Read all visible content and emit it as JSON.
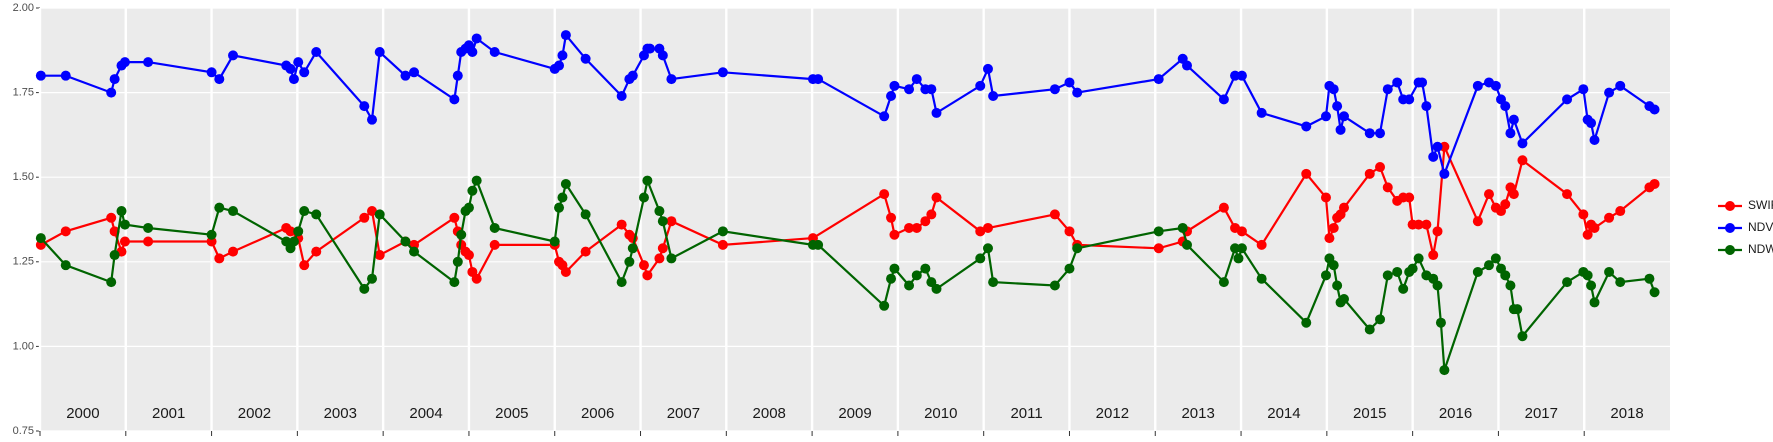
{
  "chart_data": {
    "type": "line",
    "legend": "right",
    "grid": true,
    "background": "#ebebeb",
    "xlim": [
      2000,
      2019
    ],
    "xticks": [
      2000,
      2001,
      2002,
      2003,
      2004,
      2005,
      2006,
      2007,
      2008,
      2009,
      2010,
      2011,
      2012,
      2013,
      2014,
      2015,
      2016,
      2017,
      2018
    ],
    "ylim": [
      0.75,
      2.0
    ],
    "yticks": [
      {
        "value": 0.75,
        "label": "0.75"
      },
      {
        "value": 1,
        "label": "1.00"
      },
      {
        "value": 1.25,
        "label": "1.25"
      },
      {
        "value": 1.5,
        "label": "1.50"
      },
      {
        "value": 1.75,
        "label": "1.75"
      },
      {
        "value": 2,
        "label": "2.00"
      }
    ],
    "series": [
      {
        "name": "SWIR",
        "color": "#ff0000",
        "x": [
          2000.01,
          2000.3,
          2000.83,
          2000.87,
          2000.95,
          2000.99,
          2001.26,
          2002.0,
          2002.09,
          2002.25,
          2002.87,
          2002.92,
          2003.01,
          2003.08,
          2003.22,
          2003.78,
          2003.87,
          2003.96,
          2004.26,
          2004.36,
          2004.83,
          2004.87,
          2004.91,
          2004.96,
          2005.0,
          2005.04,
          2005.09,
          2005.3,
          2006.0,
          2006.05,
          2006.09,
          2006.13,
          2006.36,
          2006.78,
          2006.87,
          2006.91,
          2007.04,
          2007.08,
          2007.22,
          2007.26,
          2007.36,
          2007.96,
          2009.01,
          2009.84,
          2009.92,
          2009.96,
          2010.13,
          2010.22,
          2010.32,
          2010.39,
          2010.45,
          2010.96,
          2011.05,
          2011.83,
          2012.0,
          2012.09,
          2013.04,
          2013.32,
          2013.37,
          2013.8,
          2013.93,
          2014.01,
          2014.24,
          2014.76,
          2014.99,
          2015.03,
          2015.08,
          2015.12,
          2015.16,
          2015.2,
          2015.5,
          2015.62,
          2015.71,
          2015.82,
          2015.89,
          2015.96,
          2016.0,
          2016.07,
          2016.16,
          2016.24,
          2016.29,
          2016.37,
          2016.76,
          2016.89,
          2016.97,
          2017.03,
          2017.08,
          2017.14,
          2017.18,
          2017.28,
          2017.8,
          2017.99,
          2018.04,
          2018.08,
          2018.12,
          2018.29,
          2018.42,
          2018.76,
          2018.82
        ],
        "values": [
          1.3,
          1.34,
          1.38,
          1.34,
          1.28,
          1.31,
          1.31,
          1.31,
          1.26,
          1.28,
          1.35,
          1.34,
          1.32,
          1.24,
          1.28,
          1.38,
          1.4,
          1.27,
          1.31,
          1.3,
          1.38,
          1.34,
          1.3,
          1.28,
          1.27,
          1.22,
          1.2,
          1.3,
          1.3,
          1.25,
          1.24,
          1.22,
          1.28,
          1.36,
          1.33,
          1.32,
          1.24,
          1.21,
          1.26,
          1.29,
          1.37,
          1.3,
          1.32,
          1.45,
          1.38,
          1.33,
          1.35,
          1.35,
          1.37,
          1.39,
          1.44,
          1.34,
          1.35,
          1.39,
          1.34,
          1.3,
          1.29,
          1.31,
          1.34,
          1.41,
          1.35,
          1.34,
          1.3,
          1.51,
          1.44,
          1.32,
          1.35,
          1.38,
          1.39,
          1.41,
          1.51,
          1.53,
          1.47,
          1.43,
          1.44,
          1.44,
          1.36,
          1.36,
          1.36,
          1.27,
          1.34,
          1.59,
          1.37,
          1.45,
          1.41,
          1.4,
          1.42,
          1.47,
          1.45,
          1.55,
          1.45,
          1.39,
          1.33,
          1.36,
          1.35,
          1.38,
          1.4,
          1.47,
          1.48
        ]
      },
      {
        "name": "NDVI",
        "color": "#0000ff",
        "x": [
          2000.01,
          2000.3,
          2000.83,
          2000.87,
          2000.95,
          2000.99,
          2001.26,
          2002.0,
          2002.09,
          2002.25,
          2002.87,
          2002.92,
          2002.96,
          2003.01,
          2003.08,
          2003.22,
          2003.78,
          2003.87,
          2003.96,
          2004.26,
          2004.36,
          2004.83,
          2004.87,
          2004.91,
          2004.96,
          2005.0,
          2005.04,
          2005.09,
          2005.3,
          2006.0,
          2006.05,
          2006.09,
          2006.13,
          2006.36,
          2006.78,
          2006.87,
          2006.91,
          2007.04,
          2007.08,
          2007.11,
          2007.22,
          2007.26,
          2007.36,
          2007.96,
          2009.01,
          2009.07,
          2009.84,
          2009.92,
          2009.96,
          2010.13,
          2010.22,
          2010.32,
          2010.39,
          2010.45,
          2010.96,
          2011.05,
          2011.11,
          2011.83,
          2012.0,
          2012.09,
          2013.04,
          2013.32,
          2013.37,
          2013.8,
          2013.93,
          2014.01,
          2014.24,
          2014.76,
          2014.99,
          2015.03,
          2015.08,
          2015.12,
          2015.16,
          2015.2,
          2015.5,
          2015.62,
          2015.71,
          2015.82,
          2015.89,
          2015.96,
          2016.07,
          2016.11,
          2016.16,
          2016.24,
          2016.29,
          2016.37,
          2016.76,
          2016.89,
          2016.97,
          2017.03,
          2017.08,
          2017.14,
          2017.18,
          2017.28,
          2017.8,
          2017.99,
          2018.04,
          2018.08,
          2018.12,
          2018.29,
          2018.42,
          2018.76,
          2018.82
        ],
        "values": [
          1.8,
          1.8,
          1.75,
          1.79,
          1.83,
          1.84,
          1.84,
          1.81,
          1.79,
          1.86,
          1.83,
          1.82,
          1.79,
          1.84,
          1.81,
          1.87,
          1.71,
          1.67,
          1.87,
          1.8,
          1.81,
          1.73,
          1.8,
          1.87,
          1.88,
          1.89,
          1.87,
          1.91,
          1.87,
          1.82,
          1.83,
          1.86,
          1.92,
          1.85,
          1.74,
          1.79,
          1.8,
          1.86,
          1.88,
          1.88,
          1.88,
          1.86,
          1.79,
          1.81,
          1.79,
          1.79,
          1.68,
          1.74,
          1.77,
          1.76,
          1.79,
          1.76,
          1.76,
          1.69,
          1.77,
          1.82,
          1.74,
          1.76,
          1.78,
          1.75,
          1.79,
          1.85,
          1.83,
          1.73,
          1.8,
          1.8,
          1.69,
          1.65,
          1.68,
          1.77,
          1.76,
          1.71,
          1.64,
          1.68,
          1.63,
          1.63,
          1.76,
          1.78,
          1.73,
          1.73,
          1.78,
          1.78,
          1.71,
          1.56,
          1.59,
          1.51,
          1.77,
          1.78,
          1.77,
          1.73,
          1.71,
          1.63,
          1.67,
          1.6,
          1.73,
          1.76,
          1.67,
          1.66,
          1.61,
          1.75,
          1.77,
          1.71,
          1.7
        ]
      },
      {
        "name": "NDWI",
        "color": "#006400",
        "x": [
          2000.01,
          2000.3,
          2000.83,
          2000.87,
          2000.95,
          2000.99,
          2001.26,
          2002.0,
          2002.09,
          2002.25,
          2002.87,
          2002.92,
          2002.96,
          2003.01,
          2003.08,
          2003.22,
          2003.78,
          2003.87,
          2003.96,
          2004.26,
          2004.36,
          2004.83,
          2004.87,
          2004.91,
          2004.96,
          2005.0,
          2005.04,
          2005.09,
          2005.3,
          2006.0,
          2006.05,
          2006.09,
          2006.13,
          2006.36,
          2006.78,
          2006.87,
          2006.91,
          2007.04,
          2007.08,
          2007.22,
          2007.26,
          2007.36,
          2007.96,
          2009.01,
          2009.07,
          2009.84,
          2009.92,
          2009.96,
          2010.13,
          2010.22,
          2010.32,
          2010.39,
          2010.45,
          2010.96,
          2011.05,
          2011.11,
          2011.83,
          2012.0,
          2012.09,
          2013.04,
          2013.32,
          2013.37,
          2013.8,
          2013.93,
          2013.97,
          2014.01,
          2014.24,
          2014.76,
          2014.99,
          2015.03,
          2015.08,
          2015.12,
          2015.16,
          2015.2,
          2015.5,
          2015.62,
          2015.71,
          2015.82,
          2015.89,
          2015.96,
          2016.0,
          2016.07,
          2016.16,
          2016.24,
          2016.29,
          2016.33,
          2016.37,
          2016.76,
          2016.89,
          2016.97,
          2017.03,
          2017.08,
          2017.14,
          2017.18,
          2017.22,
          2017.28,
          2017.8,
          2017.99,
          2018.04,
          2018.08,
          2018.12,
          2018.29,
          2018.42,
          2018.76,
          2018.82
        ],
        "values": [
          1.32,
          1.24,
          1.19,
          1.27,
          1.4,
          1.36,
          1.35,
          1.33,
          1.41,
          1.4,
          1.31,
          1.29,
          1.31,
          1.34,
          1.4,
          1.39,
          1.17,
          1.2,
          1.39,
          1.31,
          1.28,
          1.19,
          1.25,
          1.33,
          1.4,
          1.41,
          1.46,
          1.49,
          1.35,
          1.31,
          1.41,
          1.44,
          1.48,
          1.39,
          1.19,
          1.25,
          1.29,
          1.44,
          1.49,
          1.4,
          1.37,
          1.26,
          1.34,
          1.3,
          1.3,
          1.12,
          1.2,
          1.23,
          1.18,
          1.21,
          1.23,
          1.19,
          1.17,
          1.26,
          1.29,
          1.19,
          1.18,
          1.23,
          1.29,
          1.34,
          1.35,
          1.3,
          1.19,
          1.29,
          1.26,
          1.29,
          1.2,
          1.07,
          1.21,
          1.26,
          1.24,
          1.18,
          1.13,
          1.14,
          1.05,
          1.08,
          1.21,
          1.22,
          1.17,
          1.22,
          1.23,
          1.26,
          1.21,
          1.2,
          1.18,
          1.07,
          0.93,
          1.22,
          1.24,
          1.26,
          1.23,
          1.21,
          1.18,
          1.11,
          1.11,
          1.03,
          1.19,
          1.22,
          1.21,
          1.18,
          1.13,
          1.22,
          1.19,
          1.2,
          1.16
        ]
      }
    ]
  }
}
